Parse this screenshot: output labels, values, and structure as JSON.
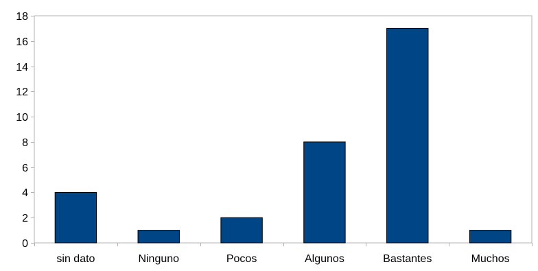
{
  "chart_data": {
    "type": "bar",
    "categories": [
      "sin dato",
      "Ninguno",
      "Pocos",
      "Algunos",
      "Bastantes",
      "Muchos"
    ],
    "values": [
      4,
      1,
      2,
      8,
      17,
      1
    ],
    "title": "",
    "xlabel": "",
    "ylabel": "",
    "ylim": [
      0,
      18
    ],
    "yticks": [
      0,
      2,
      4,
      6,
      8,
      10,
      12,
      14,
      16,
      18
    ],
    "grid": false,
    "legend": "none",
    "bar_color": "#004586",
    "frame_color": "#b3b3b3"
  }
}
